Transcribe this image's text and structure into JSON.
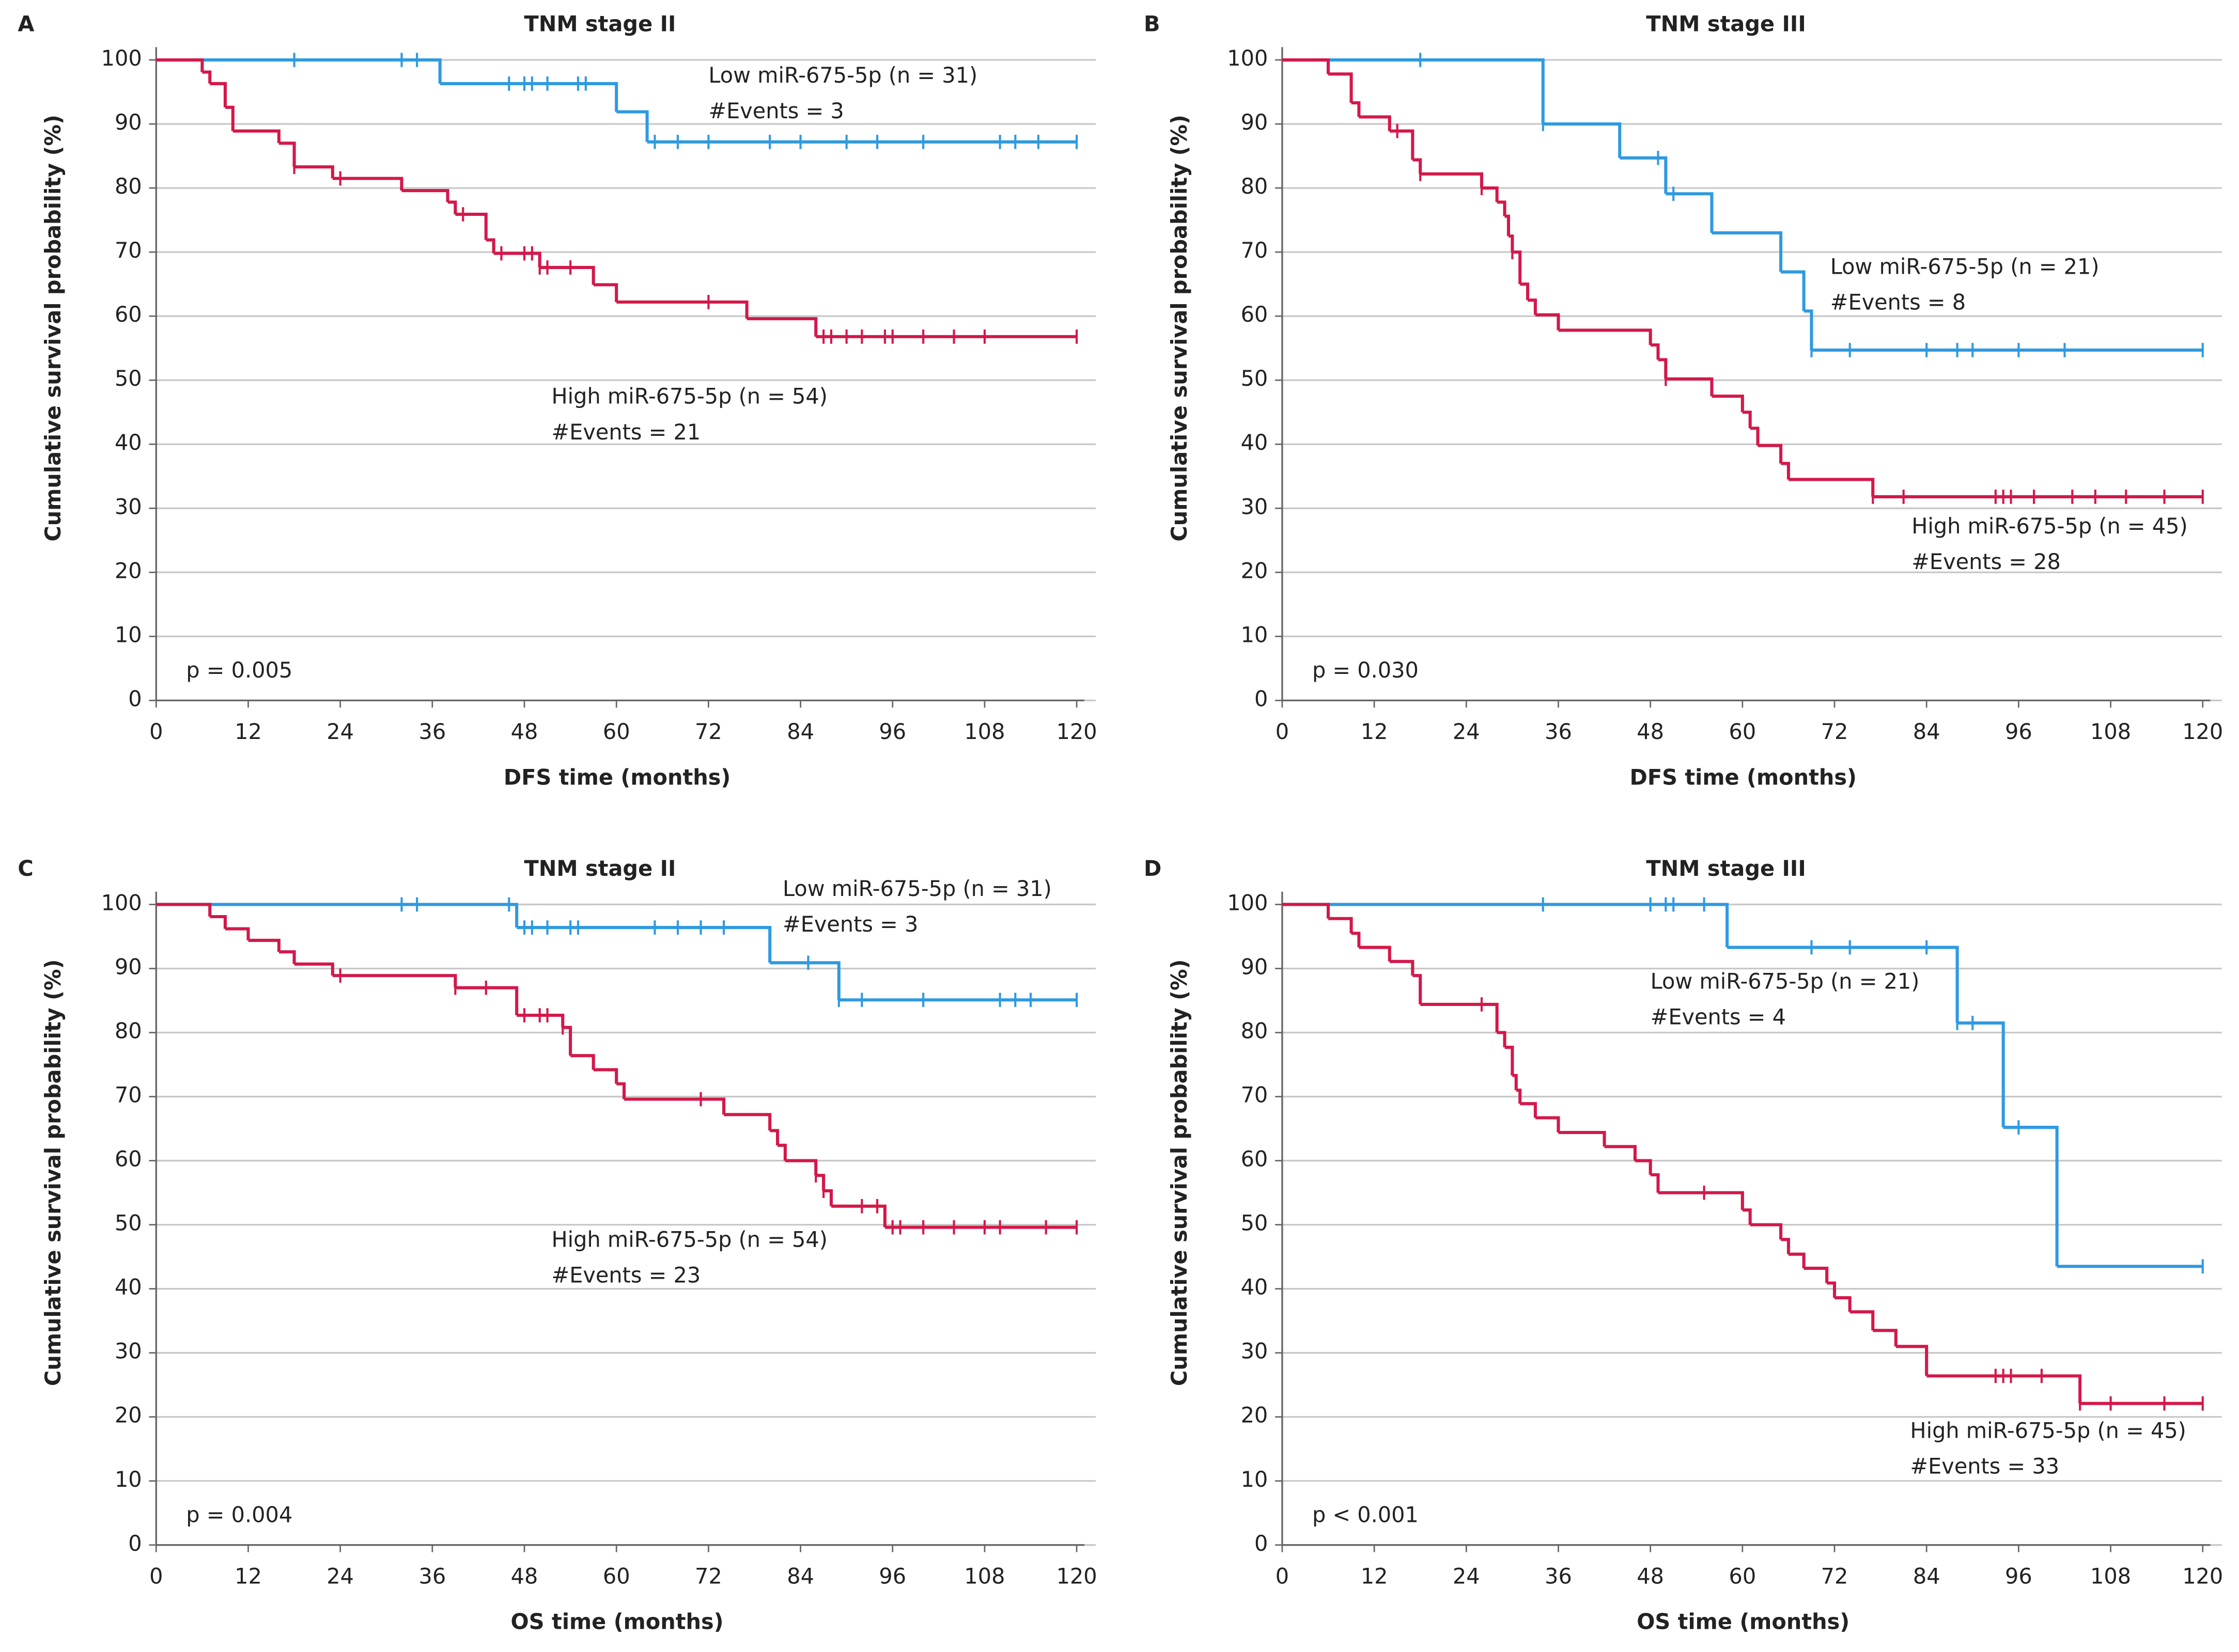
{
  "chart_data": [
    {
      "type": "km",
      "panel_label": "A",
      "title": "TNM stage II",
      "xlabel": "DFS time (months)",
      "ylabel": "Cumulative survival probability (%)",
      "annotation": "p = 0.005",
      "xlim": [
        0,
        121
      ],
      "ylim": [
        0,
        102
      ],
      "xticks": [
        0,
        12,
        24,
        36,
        48,
        60,
        72,
        84,
        96,
        108,
        120
      ],
      "yticks": [
        0,
        10,
        20,
        30,
        40,
        50,
        60,
        70,
        80,
        90,
        100
      ],
      "grid": true,
      "series": [
        {
          "name": "Low miR-675-5p (n = 31)",
          "events_label": "#Events = 3",
          "color": "#2f9ae0",
          "x": [
            0,
            37,
            60,
            64,
            120
          ],
          "values": [
            100,
            96.3,
            91.9,
            87.2,
            87.2
          ],
          "censored_x": [
            18,
            32,
            34,
            46,
            48,
            49,
            51,
            55,
            56,
            65,
            68,
            72,
            80,
            84,
            90,
            94,
            100,
            110,
            112,
            115,
            120
          ]
        },
        {
          "name": "High miR-675-5p (n = 54)",
          "events_label": "#Events = 21",
          "color": "#d3184a",
          "x": [
            0,
            6,
            7,
            9,
            10,
            16,
            18,
            23,
            32,
            38,
            39,
            43,
            44,
            50,
            57,
            60,
            77,
            86,
            120
          ],
          "values": [
            100,
            98.1,
            96.3,
            92.6,
            88.9,
            87.0,
            83.3,
            81.5,
            79.6,
            77.8,
            75.9,
            71.9,
            69.8,
            67.6,
            64.9,
            62.2,
            59.6,
            56.8,
            56.8
          ],
          "censored_x": [
            18,
            24,
            40,
            45,
            48,
            49,
            50,
            51,
            54,
            72,
            87,
            88,
            90,
            92,
            95,
            96,
            100,
            104,
            108,
            120
          ]
        }
      ]
    },
    {
      "type": "km",
      "panel_label": "B",
      "title": "TNM stage III",
      "xlabel": "DFS time (months)",
      "ylabel": "Cumulative survival probability (%)",
      "annotation": "p = 0.030",
      "xlim": [
        0,
        121
      ],
      "ylim": [
        0,
        102
      ],
      "xticks": [
        0,
        12,
        24,
        36,
        48,
        60,
        72,
        84,
        96,
        108,
        120
      ],
      "yticks": [
        0,
        10,
        20,
        30,
        40,
        50,
        60,
        70,
        80,
        90,
        100
      ],
      "grid": true,
      "series": [
        {
          "name": "Low miR-675-5p (n = 21)",
          "events_label": "#Events = 8",
          "color": "#2f9ae0",
          "x": [
            0,
            34,
            44,
            50,
            56,
            65,
            68,
            69,
            120
          ],
          "values": [
            100,
            90,
            84.7,
            79.1,
            73.0,
            66.9,
            60.8,
            54.7,
            54.7
          ],
          "censored_x": [
            18,
            34,
            49,
            51,
            69,
            74,
            84,
            88,
            90,
            96,
            102,
            120
          ]
        },
        {
          "name": "High miR-675-5p (n = 45)",
          "events_label": "#Events = 28",
          "color": "#d3184a",
          "x": [
            0,
            6,
            9,
            10,
            14,
            17,
            18,
            26,
            28,
            29,
            29.5,
            30,
            31,
            32,
            33,
            36,
            48,
            49,
            50,
            56,
            60,
            61,
            62,
            65,
            66,
            77,
            120
          ],
          "values": [
            100,
            97.8,
            93.3,
            91.1,
            88.9,
            84.4,
            82.2,
            80,
            77.8,
            75.6,
            72.5,
            70,
            65,
            62.5,
            60.2,
            57.8,
            55.5,
            53.2,
            50.2,
            47.5,
            45,
            42.5,
            39.8,
            37,
            34.5,
            31.8,
            31.8
          ],
          "censored_x": [
            15,
            18,
            26,
            30,
            50,
            77,
            81,
            93,
            94,
            95,
            98,
            103,
            106,
            110,
            115,
            120
          ]
        }
      ]
    },
    {
      "type": "km",
      "panel_label": "C",
      "title": "TNM stage II",
      "xlabel": "OS time (months)",
      "ylabel": "Cumulative survival probability (%)",
      "annotation": "p = 0.004",
      "xlim": [
        0,
        121
      ],
      "ylim": [
        0,
        102
      ],
      "xticks": [
        0,
        12,
        24,
        36,
        48,
        60,
        72,
        84,
        96,
        108,
        120
      ],
      "yticks": [
        0,
        10,
        20,
        30,
        40,
        50,
        60,
        70,
        80,
        90,
        100
      ],
      "grid": true,
      "series": [
        {
          "name": "Low miR-675-5p (n = 31)",
          "events_label": "#Events = 3",
          "color": "#2f9ae0",
          "x": [
            0,
            47,
            80,
            89,
            120
          ],
          "values": [
            100,
            96.4,
            90.9,
            85.1,
            85.1
          ],
          "censored_x": [
            32,
            34,
            46,
            48,
            49,
            51,
            54,
            55,
            65,
            68,
            71,
            74,
            85,
            89,
            92,
            100,
            110,
            112,
            114,
            120
          ]
        },
        {
          "name": "High miR-675-5p (n = 54)",
          "events_label": "#Events = 23",
          "color": "#d3184a",
          "x": [
            0,
            7,
            9,
            12,
            16,
            18,
            23,
            39,
            47,
            53,
            54,
            57,
            60,
            61,
            74,
            80,
            81,
            82,
            86,
            87,
            88,
            95,
            120
          ],
          "values": [
            100,
            98.1,
            96.2,
            94.4,
            92.6,
            90.7,
            88.9,
            87.0,
            82.7,
            80.8,
            76.4,
            74.2,
            72,
            69.6,
            67.2,
            64.7,
            62.4,
            60,
            57.7,
            55.3,
            52.9,
            49.6,
            49.6
          ],
          "censored_x": [
            24,
            39,
            43,
            48,
            50,
            51,
            53,
            71,
            86,
            87,
            92,
            94,
            96,
            97,
            100,
            104,
            108,
            110,
            116,
            120
          ]
        }
      ]
    },
    {
      "type": "km",
      "panel_label": "D",
      "title": "TNM stage III",
      "xlabel": "OS time (months)",
      "ylabel": "Cumulative survival probability (%)",
      "annotation": "p < 0.001",
      "xlim": [
        0,
        121
      ],
      "ylim": [
        0,
        102
      ],
      "xticks": [
        0,
        12,
        24,
        36,
        48,
        60,
        72,
        84,
        96,
        108,
        120
      ],
      "yticks": [
        0,
        10,
        20,
        30,
        40,
        50,
        60,
        70,
        80,
        90,
        100
      ],
      "grid": true,
      "series": [
        {
          "name": "Low miR-675-5p (n = 21)",
          "events_label": "#Events = 4",
          "color": "#2f9ae0",
          "x": [
            0,
            58,
            88,
            94,
            101,
            120
          ],
          "values": [
            100,
            93.3,
            81.5,
            65.2,
            43.5,
            43.5
          ],
          "censored_x": [
            34,
            48,
            50,
            51,
            55,
            69,
            74,
            84,
            88,
            90,
            96,
            120
          ]
        },
        {
          "name": "High miR-675-5p (n = 45)",
          "events_label": "#Events = 33",
          "color": "#d3184a",
          "x": [
            0,
            6,
            9,
            10,
            14,
            17,
            18,
            28,
            29,
            30,
            30.5,
            31,
            33,
            36,
            42,
            46,
            48,
            49,
            60,
            61,
            65,
            66,
            68,
            71,
            72,
            74,
            77,
            80,
            84,
            104,
            120
          ],
          "values": [
            100,
            97.8,
            95.5,
            93.3,
            91.1,
            88.9,
            84.4,
            80,
            77.7,
            73.3,
            71,
            68.9,
            66.7,
            64.4,
            62.2,
            60,
            57.8,
            55,
            52.3,
            50,
            47.7,
            45.4,
            43.2,
            40.9,
            38.6,
            36.4,
            33.5,
            31,
            26.4,
            22.1,
            22.1
          ],
          "censored_x": [
            26,
            55,
            93,
            94,
            95,
            99,
            104,
            108,
            115,
            120
          ]
        }
      ]
    }
  ]
}
